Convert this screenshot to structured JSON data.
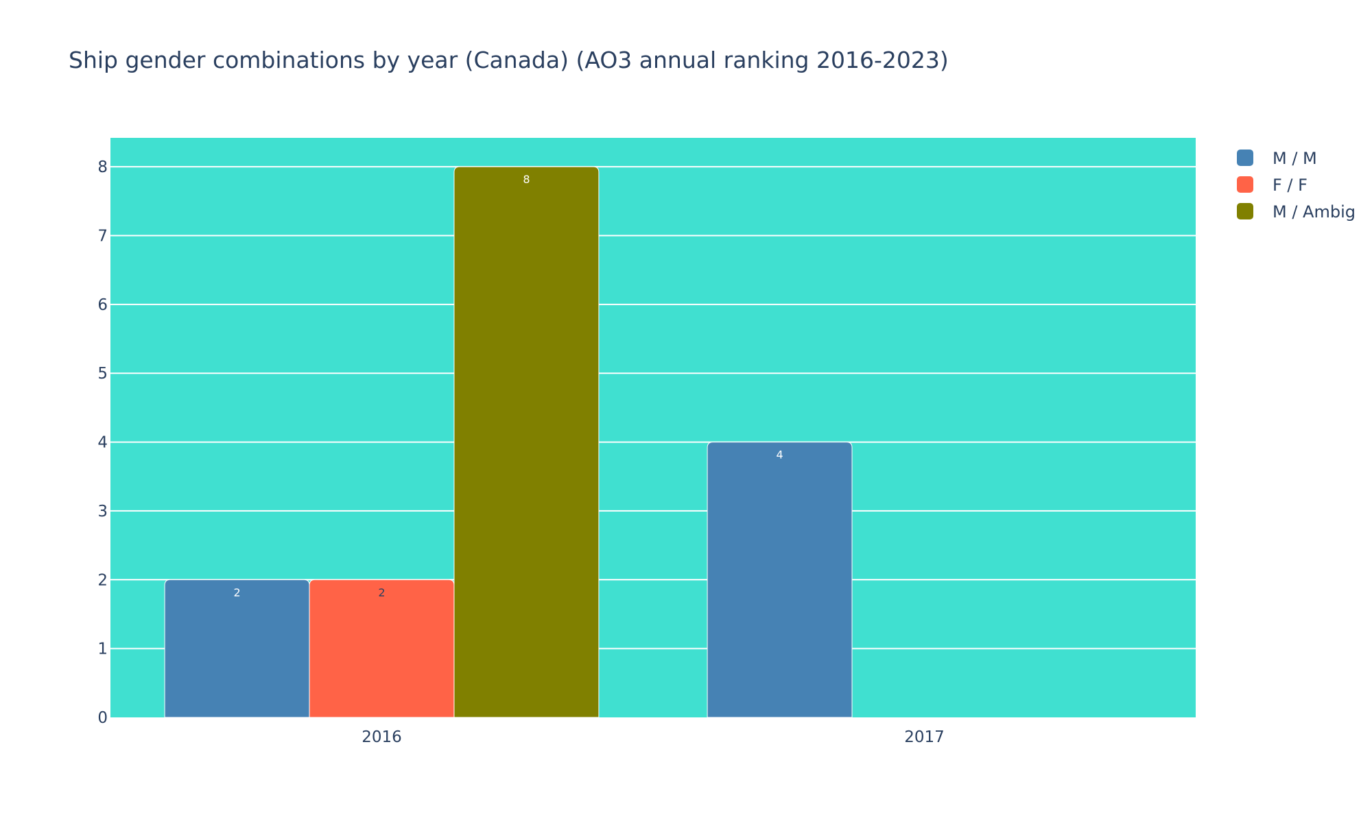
{
  "chart_data": {
    "type": "bar",
    "title": "Ship gender combinations by year (Canada) (AO3 annual ranking 2016-2023)",
    "xlabel": "",
    "ylabel": "",
    "categories": [
      "2016",
      "2017"
    ],
    "ylim": [
      0,
      8.42
    ],
    "yticks": [
      0,
      1,
      2,
      3,
      4,
      5,
      6,
      7,
      8
    ],
    "ytick_labels": [
      "0",
      "1",
      "2",
      "3",
      "4",
      "5",
      "6",
      "7",
      "8"
    ],
    "grid": true,
    "legend_position": "top-right",
    "plot_background": "#40e0d0",
    "series": [
      {
        "name": "M / M",
        "color": "#4682b4",
        "label_color": "#ffffff",
        "values": [
          2,
          4
        ]
      },
      {
        "name": "F / F",
        "color": "#ff6347",
        "label_color": "#2a3f5f",
        "values": [
          2,
          null
        ]
      },
      {
        "name": "M / Ambig",
        "color": "#808000",
        "label_color": "#ffffff",
        "values": [
          8,
          null
        ]
      }
    ]
  }
}
